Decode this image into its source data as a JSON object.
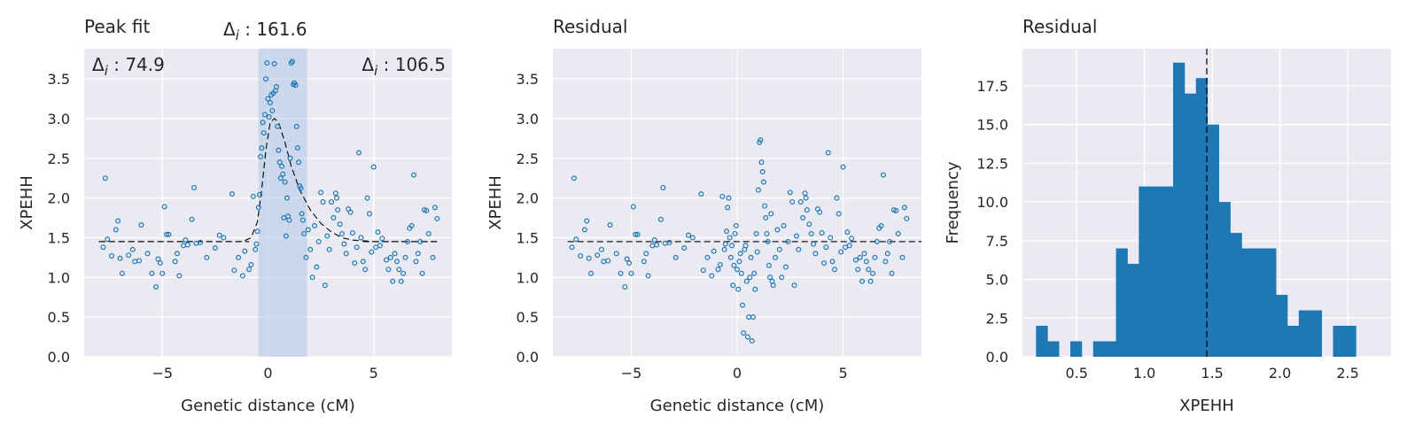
{
  "chart_data": [
    {
      "type": "scatter",
      "title": "Peak fit",
      "xlabel": "Genetic distance (cM)",
      "ylabel": "XPEHH",
      "xlim": [
        -8.7,
        8.7
      ],
      "ylim": [
        0,
        3.88
      ],
      "xticks": [
        -5,
        0,
        5
      ],
      "xtick_labels": [
        "−5",
        "0",
        "5"
      ],
      "yticks": [
        0.0,
        0.5,
        1.0,
        1.5,
        2.0,
        2.5,
        3.0,
        3.5
      ],
      "ytick_labels": [
        "0.0",
        "0.5",
        "1.0",
        "1.5",
        "2.0",
        "2.5",
        "3.0",
        "3.5"
      ],
      "baseline": 1.45,
      "peak_region": [
        -0.45,
        1.85
      ],
      "fit_curve": [
        [
          -8,
          1.45
        ],
        [
          -1.2,
          1.45
        ],
        [
          -0.8,
          1.5
        ],
        [
          -0.5,
          1.7
        ],
        [
          -0.3,
          2.1
        ],
        [
          -0.1,
          2.6
        ],
        [
          0.1,
          2.95
        ],
        [
          0.3,
          3.0
        ],
        [
          0.5,
          2.95
        ],
        [
          0.8,
          2.7
        ],
        [
          1.1,
          2.4
        ],
        [
          1.5,
          2.1
        ],
        [
          2.0,
          1.85
        ],
        [
          2.5,
          1.68
        ],
        [
          3.0,
          1.57
        ],
        [
          3.5,
          1.5
        ],
        [
          4.0,
          1.47
        ],
        [
          5.0,
          1.45
        ],
        [
          8.0,
          1.45
        ]
      ],
      "annotations": {
        "top": "161.6",
        "left": "74.9",
        "right": "106.5"
      },
      "points": [
        [
          -7.8,
          1.38
        ],
        [
          -7.7,
          2.25
        ],
        [
          -7.6,
          1.48
        ],
        [
          -7.4,
          1.27
        ],
        [
          -7.2,
          1.6
        ],
        [
          -7.1,
          1.71
        ],
        [
          -7.0,
          1.24
        ],
        [
          -6.9,
          1.05
        ],
        [
          -6.6,
          1.28
        ],
        [
          -6.4,
          1.35
        ],
        [
          -6.3,
          1.2
        ],
        [
          -6.1,
          1.21
        ],
        [
          -6.0,
          1.66
        ],
        [
          -5.7,
          1.3
        ],
        [
          -5.5,
          1.05
        ],
        [
          -5.3,
          0.88
        ],
        [
          -5.2,
          1.23
        ],
        [
          -5.1,
          1.18
        ],
        [
          -5.0,
          1.05
        ],
        [
          -4.9,
          1.89
        ],
        [
          -4.8,
          1.54
        ],
        [
          -4.7,
          1.54
        ],
        [
          -4.4,
          1.2
        ],
        [
          -4.3,
          1.3
        ],
        [
          -4.2,
          1.02
        ],
        [
          -4.0,
          1.4
        ],
        [
          -3.9,
          1.47
        ],
        [
          -3.8,
          1.41
        ],
        [
          -3.6,
          1.73
        ],
        [
          -3.5,
          2.13
        ],
        [
          -3.4,
          1.43
        ],
        [
          -3.2,
          1.44
        ],
        [
          -2.9,
          1.25
        ],
        [
          -2.5,
          1.37
        ],
        [
          -2.3,
          1.53
        ],
        [
          -2.1,
          1.5
        ],
        [
          -1.7,
          2.05
        ],
        [
          -1.6,
          1.09
        ],
        [
          -1.4,
          1.25
        ],
        [
          -1.2,
          1.02
        ],
        [
          -1.1,
          1.33
        ],
        [
          -0.9,
          1.1
        ],
        [
          -0.8,
          1.16
        ],
        [
          -0.7,
          2.02
        ],
        [
          -0.6,
          1.35
        ],
        [
          -0.55,
          1.42
        ],
        [
          -0.5,
          1.58
        ],
        [
          -0.45,
          1.88
        ],
        [
          -0.4,
          2.04
        ],
        [
          -0.35,
          2.52
        ],
        [
          -0.3,
          2.63
        ],
        [
          -0.25,
          2.95
        ],
        [
          -0.2,
          2.82
        ],
        [
          -0.15,
          3.05
        ],
        [
          -0.1,
          3.5
        ],
        [
          -0.05,
          3.7
        ],
        [
          0.0,
          3.25
        ],
        [
          0.05,
          3.02
        ],
        [
          0.1,
          3.2
        ],
        [
          0.15,
          3.3
        ],
        [
          0.2,
          3.1
        ],
        [
          0.25,
          3.32
        ],
        [
          0.3,
          3.69
        ],
        [
          0.35,
          3.35
        ],
        [
          0.4,
          3.4
        ],
        [
          0.45,
          2.9
        ],
        [
          0.5,
          2.6
        ],
        [
          0.55,
          2.45
        ],
        [
          0.6,
          2.25
        ],
        [
          0.65,
          2.4
        ],
        [
          0.7,
          2.3
        ],
        [
          0.75,
          1.75
        ],
        [
          0.8,
          2.2
        ],
        [
          0.85,
          1.52
        ],
        [
          0.9,
          2.0
        ],
        [
          0.95,
          1.77
        ],
        [
          1.0,
          1.72
        ],
        [
          1.05,
          2.5
        ],
        [
          1.1,
          3.7
        ],
        [
          1.15,
          3.72
        ],
        [
          1.2,
          3.43
        ],
        [
          1.25,
          3.45
        ],
        [
          1.3,
          3.42
        ],
        [
          1.35,
          2.9
        ],
        [
          1.4,
          2.63
        ],
        [
          1.45,
          2.45
        ],
        [
          1.5,
          2.15
        ],
        [
          1.55,
          2.12
        ],
        [
          1.6,
          1.8
        ],
        [
          1.65,
          1.72
        ],
        [
          1.7,
          1.55
        ],
        [
          1.8,
          1.25
        ],
        [
          1.9,
          1.6
        ],
        [
          2.0,
          1.35
        ],
        [
          2.1,
          1.0
        ],
        [
          2.2,
          1.65
        ],
        [
          2.3,
          1.13
        ],
        [
          2.4,
          1.45
        ],
        [
          2.5,
          2.07
        ],
        [
          2.6,
          1.95
        ],
        [
          2.7,
          0.9
        ],
        [
          2.8,
          1.52
        ],
        [
          2.9,
          1.35
        ],
        [
          3.0,
          1.95
        ],
        [
          3.1,
          1.75
        ],
        [
          3.2,
          2.06
        ],
        [
          3.25,
          2.0
        ],
        [
          3.3,
          1.85
        ],
        [
          3.4,
          1.67
        ],
        [
          3.5,
          1.55
        ],
        [
          3.6,
          1.42
        ],
        [
          3.7,
          1.3
        ],
        [
          3.8,
          1.86
        ],
        [
          3.9,
          1.82
        ],
        [
          4.0,
          1.56
        ],
        [
          4.1,
          1.18
        ],
        [
          4.2,
          1.38
        ],
        [
          4.3,
          2.57
        ],
        [
          4.4,
          1.5
        ],
        [
          4.5,
          1.2
        ],
        [
          4.6,
          1.1
        ],
        [
          4.7,
          2.0
        ],
        [
          4.8,
          1.8
        ],
        [
          4.9,
          1.32
        ],
        [
          5.0,
          2.39
        ],
        [
          5.1,
          1.38
        ],
        [
          5.2,
          1.57
        ],
        [
          5.3,
          1.4
        ],
        [
          5.4,
          1.49
        ],
        [
          5.6,
          1.22
        ],
        [
          5.7,
          1.1
        ],
        [
          5.8,
          1.25
        ],
        [
          5.9,
          0.95
        ],
        [
          6.0,
          1.3
        ],
        [
          6.1,
          1.2
        ],
        [
          6.2,
          1.1
        ],
        [
          6.3,
          0.95
        ],
        [
          6.4,
          1.05
        ],
        [
          6.5,
          1.25
        ],
        [
          6.6,
          1.45
        ],
        [
          6.7,
          1.62
        ],
        [
          6.8,
          1.65
        ],
        [
          6.9,
          2.29
        ],
        [
          7.0,
          1.2
        ],
        [
          7.1,
          1.3
        ],
        [
          7.2,
          1.45
        ],
        [
          7.3,
          1.05
        ],
        [
          7.4,
          1.85
        ],
        [
          7.5,
          1.84
        ],
        [
          7.6,
          1.55
        ],
        [
          7.8,
          1.25
        ],
        [
          7.9,
          1.88
        ],
        [
          8.0,
          1.74
        ]
      ]
    },
    {
      "type": "scatter",
      "title": "Residual",
      "xlabel": "Genetic distance (cM)",
      "ylabel": "XPEHH",
      "xlim": [
        -8.7,
        8.7
      ],
      "ylim": [
        0,
        3.88
      ],
      "xticks": [
        -5,
        0,
        5
      ],
      "xtick_labels": [
        "−5",
        "0",
        "5"
      ],
      "yticks": [
        0.0,
        0.5,
        1.0,
        1.5,
        2.0,
        2.5,
        3.0,
        3.5
      ],
      "ytick_labels": [
        "0.0",
        "0.5",
        "1.0",
        "1.5",
        "2.0",
        "2.5",
        "3.0",
        "3.5"
      ],
      "baseline": 1.45,
      "points": [
        [
          -7.8,
          1.38
        ],
        [
          -7.7,
          2.25
        ],
        [
          -7.6,
          1.48
        ],
        [
          -7.4,
          1.27
        ],
        [
          -7.2,
          1.6
        ],
        [
          -7.1,
          1.71
        ],
        [
          -7.0,
          1.24
        ],
        [
          -6.9,
          1.05
        ],
        [
          -6.6,
          1.28
        ],
        [
          -6.4,
          1.35
        ],
        [
          -6.3,
          1.2
        ],
        [
          -6.1,
          1.21
        ],
        [
          -6.0,
          1.66
        ],
        [
          -5.7,
          1.3
        ],
        [
          -5.5,
          1.05
        ],
        [
          -5.3,
          0.88
        ],
        [
          -5.2,
          1.23
        ],
        [
          -5.1,
          1.18
        ],
        [
          -5.0,
          1.05
        ],
        [
          -4.9,
          1.89
        ],
        [
          -4.8,
          1.54
        ],
        [
          -4.7,
          1.54
        ],
        [
          -4.4,
          1.2
        ],
        [
          -4.3,
          1.3
        ],
        [
          -4.2,
          1.02
        ],
        [
          -4.0,
          1.4
        ],
        [
          -3.9,
          1.47
        ],
        [
          -3.8,
          1.41
        ],
        [
          -3.6,
          1.73
        ],
        [
          -3.5,
          2.13
        ],
        [
          -3.4,
          1.43
        ],
        [
          -3.2,
          1.44
        ],
        [
          -2.9,
          1.25
        ],
        [
          -2.5,
          1.37
        ],
        [
          -2.3,
          1.53
        ],
        [
          -2.1,
          1.5
        ],
        [
          -1.7,
          2.05
        ],
        [
          -1.6,
          1.09
        ],
        [
          -1.4,
          1.25
        ],
        [
          -1.2,
          1.02
        ],
        [
          -1.1,
          1.33
        ],
        [
          -0.9,
          1.1
        ],
        [
          -0.8,
          1.16
        ],
        [
          -0.7,
          2.02
        ],
        [
          -0.6,
          1.35
        ],
        [
          -0.55,
          1.42
        ],
        [
          -0.5,
          1.58
        ],
        [
          -0.45,
          1.88
        ],
        [
          -0.4,
          2.0
        ],
        [
          -0.35,
          1.5
        ],
        [
          -0.3,
          1.25
        ],
        [
          -0.25,
          1.4
        ],
        [
          -0.2,
          0.9
        ],
        [
          -0.15,
          1.15
        ],
        [
          -0.1,
          1.55
        ],
        [
          -0.05,
          1.65
        ],
        [
          0.0,
          1.1
        ],
        [
          0.05,
          0.85
        ],
        [
          0.1,
          1.2
        ],
        [
          0.15,
          1.3
        ],
        [
          0.2,
          1.05
        ],
        [
          0.25,
          0.65
        ],
        [
          0.3,
          0.3
        ],
        [
          0.35,
          1.35
        ],
        [
          0.4,
          1.4
        ],
        [
          0.45,
          0.95
        ],
        [
          0.5,
          0.25
        ],
        [
          0.55,
          0.5
        ],
        [
          0.6,
          1.0
        ],
        [
          0.65,
          1.25
        ],
        [
          0.7,
          0.2
        ],
        [
          0.75,
          0.5
        ],
        [
          0.8,
          1.05
        ],
        [
          0.85,
          0.85
        ],
        [
          0.9,
          1.55
        ],
        [
          0.95,
          1.32
        ],
        [
          1.0,
          2.1
        ],
        [
          1.05,
          2.7
        ],
        [
          1.1,
          2.73
        ],
        [
          1.15,
          2.45
        ],
        [
          1.2,
          2.33
        ],
        [
          1.25,
          2.2
        ],
        [
          1.3,
          1.9
        ],
        [
          1.35,
          1.75
        ],
        [
          1.4,
          1.55
        ],
        [
          1.45,
          1.45
        ],
        [
          1.5,
          1.15
        ],
        [
          1.55,
          1.0
        ],
        [
          1.6,
          1.8
        ],
        [
          1.65,
          0.95
        ],
        [
          1.7,
          0.9
        ],
        [
          1.8,
          1.25
        ],
        [
          1.9,
          1.6
        ],
        [
          2.0,
          1.35
        ],
        [
          2.1,
          1.0
        ],
        [
          2.2,
          1.65
        ],
        [
          2.3,
          1.13
        ],
        [
          2.4,
          1.45
        ],
        [
          2.5,
          2.07
        ],
        [
          2.6,
          1.95
        ],
        [
          2.7,
          0.9
        ],
        [
          2.8,
          1.52
        ],
        [
          2.9,
          1.35
        ],
        [
          3.0,
          1.95
        ],
        [
          3.1,
          1.75
        ],
        [
          3.2,
          2.06
        ],
        [
          3.25,
          2.0
        ],
        [
          3.3,
          1.85
        ],
        [
          3.4,
          1.67
        ],
        [
          3.5,
          1.55
        ],
        [
          3.6,
          1.42
        ],
        [
          3.7,
          1.3
        ],
        [
          3.8,
          1.86
        ],
        [
          3.9,
          1.82
        ],
        [
          4.0,
          1.56
        ],
        [
          4.1,
          1.18
        ],
        [
          4.2,
          1.38
        ],
        [
          4.3,
          2.57
        ],
        [
          4.4,
          1.5
        ],
        [
          4.5,
          1.2
        ],
        [
          4.6,
          1.1
        ],
        [
          4.7,
          2.0
        ],
        [
          4.8,
          1.8
        ],
        [
          4.9,
          1.32
        ],
        [
          5.0,
          2.39
        ],
        [
          5.1,
          1.38
        ],
        [
          5.2,
          1.57
        ],
        [
          5.3,
          1.4
        ],
        [
          5.4,
          1.49
        ],
        [
          5.6,
          1.22
        ],
        [
          5.7,
          1.1
        ],
        [
          5.8,
          1.25
        ],
        [
          5.9,
          0.95
        ],
        [
          6.0,
          1.3
        ],
        [
          6.1,
          1.2
        ],
        [
          6.2,
          1.1
        ],
        [
          6.3,
          0.95
        ],
        [
          6.4,
          1.05
        ],
        [
          6.5,
          1.25
        ],
        [
          6.6,
          1.45
        ],
        [
          6.7,
          1.62
        ],
        [
          6.8,
          1.65
        ],
        [
          6.9,
          2.29
        ],
        [
          7.0,
          1.2
        ],
        [
          7.1,
          1.3
        ],
        [
          7.2,
          1.45
        ],
        [
          7.3,
          1.05
        ],
        [
          7.4,
          1.85
        ],
        [
          7.5,
          1.84
        ],
        [
          7.6,
          1.55
        ],
        [
          7.8,
          1.25
        ],
        [
          7.9,
          1.88
        ],
        [
          8.0,
          1.74
        ]
      ]
    },
    {
      "type": "bar",
      "subtype": "histogram",
      "title": "Residual",
      "xlabel": "XPEHH",
      "ylabel": "Frequency",
      "xlim": [
        0.1,
        2.82
      ],
      "ylim": [
        0,
        19.9
      ],
      "xticks": [
        0.5,
        1.0,
        1.5,
        2.0,
        2.5
      ],
      "xtick_labels": [
        "0.5",
        "1.0",
        "1.5",
        "2.0",
        "2.5"
      ],
      "yticks": [
        0.0,
        2.5,
        5.0,
        7.5,
        10.0,
        12.5,
        15.0,
        17.5
      ],
      "ytick_labels": [
        "0.0",
        "2.5",
        "5.0",
        "7.5",
        "10.0",
        "12.5",
        "15.0",
        "17.5"
      ],
      "bin_start": 0.2,
      "bin_width": 0.0843,
      "counts": [
        2,
        1,
        0,
        1,
        0,
        1,
        1,
        7,
        6,
        11,
        11,
        11,
        19,
        17,
        18,
        15,
        10,
        8,
        7,
        7,
        7,
        4,
        2,
        3,
        3,
        0,
        2,
        2
      ],
      "vline": 1.46
    }
  ]
}
